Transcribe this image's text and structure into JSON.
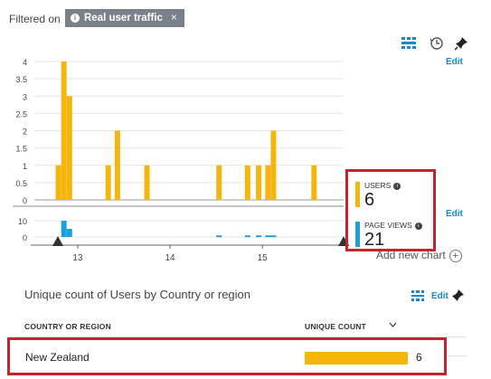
{
  "filter": {
    "label": "Filtered on",
    "chip_text": "Real user traffic",
    "chip_close": "×"
  },
  "toolbar": {
    "edit_label": "Edit"
  },
  "chart_data": {
    "type": "bar",
    "bins": [
      {
        "x": 12.79,
        "users": 1,
        "views": 0
      },
      {
        "x": 12.85,
        "users": 4,
        "views": 10
      },
      {
        "x": 12.91,
        "users": 3,
        "views": 5
      },
      {
        "x": 13.33,
        "users": 1,
        "views": 0
      },
      {
        "x": 13.43,
        "users": 2,
        "views": 0
      },
      {
        "x": 13.75,
        "users": 1,
        "views": 0
      },
      {
        "x": 14.53,
        "users": 1,
        "views": 1
      },
      {
        "x": 14.84,
        "users": 1,
        "views": 1
      },
      {
        "x": 14.96,
        "users": 1,
        "views": 1
      },
      {
        "x": 15.06,
        "users": 1,
        "views": 1
      },
      {
        "x": 15.12,
        "users": 2,
        "views": 1
      },
      {
        "x": 15.56,
        "users": 1,
        "views": 0
      }
    ],
    "users_y_ticks": [
      "4",
      "3.5",
      "3",
      "2.5",
      "2",
      "1.5",
      "1",
      "0.5",
      "0"
    ],
    "users_ylim": [
      0,
      4
    ],
    "views_y_ticks": [
      "10",
      "0"
    ],
    "views_ylim": [
      0,
      10
    ],
    "x_ticks": [
      "13",
      "14",
      "15"
    ],
    "x_tick_values": [
      13,
      14,
      15
    ],
    "xlim": [
      12.53,
      15.88
    ],
    "colors": {
      "users": "#f5b50c",
      "views": "#1ba1e2"
    }
  },
  "metrics": {
    "users": {
      "label": "USERS",
      "value": "6",
      "color": "#f5b50c"
    },
    "page_views": {
      "label": "PAGE VIEWS",
      "value": "21",
      "color": "#1ba1e2"
    }
  },
  "add_chart": {
    "label": "Add new chart",
    "icon": "plus-circle-icon"
  },
  "table_section": {
    "title": "Unique count of Users by Country or region",
    "edit_label": "Edit",
    "columns": {
      "country": "COUNTRY OR REGION",
      "count": "UNIQUE COUNT"
    },
    "rows": [
      {
        "country": "New Zealand",
        "count": "6",
        "fraction": 1.0
      }
    ]
  }
}
